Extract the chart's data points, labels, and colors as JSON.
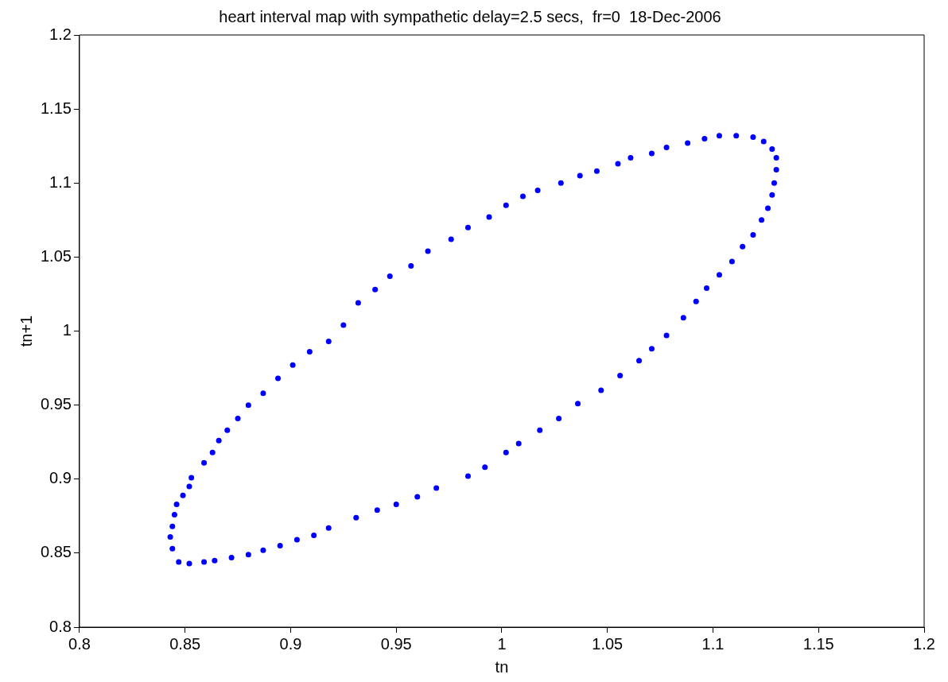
{
  "chart_data": {
    "type": "scatter",
    "title": "heart interval map with sympathetic delay=2.5 secs,  fr=0  18-Dec-2006",
    "xlabel": "tn",
    "ylabel": "tn+1",
    "xlim": [
      0.8,
      1.2
    ],
    "xticks": [
      0.8,
      0.85,
      0.9,
      0.95,
      1,
      1.05,
      1.1,
      1.15,
      1.2
    ],
    "ylim": [
      0.8,
      1.2
    ],
    "yticks": [
      0.8,
      0.85,
      0.9,
      0.95,
      1,
      1.05,
      1.1,
      1.15,
      1.2
    ],
    "grid": false,
    "legend": false,
    "marker": "circle",
    "series": [
      {
        "color": "#0000ff",
        "x": [
          0.847,
          0.852,
          0.859,
          0.864,
          0.872,
          0.88,
          0.887,
          0.895,
          0.903,
          0.911,
          0.918,
          0.931,
          0.941,
          0.95,
          0.96,
          0.969,
          0.984,
          0.992,
          1.002,
          1.008,
          1.018,
          1.027,
          1.036,
          1.047,
          1.056,
          1.065,
          1.071,
          1.078,
          1.086,
          1.092,
          1.097,
          1.103,
          1.109,
          1.114,
          1.119,
          1.123,
          1.126,
          1.128,
          1.129,
          1.13,
          1.13,
          1.128,
          1.124,
          1.119,
          1.111,
          1.103,
          1.096,
          1.088,
          1.078,
          1.071,
          1.061,
          1.055,
          1.045,
          1.037,
          1.028,
          1.017,
          1.01,
          1.002,
          0.994,
          0.984,
          0.976,
          0.965,
          0.957,
          0.947,
          0.94,
          0.932,
          0.925,
          0.918,
          0.909,
          0.901,
          0.894,
          0.887,
          0.88,
          0.875,
          0.87,
          0.866,
          0.863,
          0.859,
          0.853,
          0.852,
          0.849,
          0.846,
          0.845,
          0.844,
          0.843,
          0.844
        ],
        "values": [
          0.844,
          0.843,
          0.844,
          0.845,
          0.847,
          0.849,
          0.852,
          0.855,
          0.859,
          0.862,
          0.867,
          0.874,
          0.879,
          0.883,
          0.888,
          0.894,
          0.902,
          0.908,
          0.918,
          0.924,
          0.933,
          0.941,
          0.951,
          0.96,
          0.97,
          0.98,
          0.988,
          0.997,
          1.009,
          1.02,
          1.029,
          1.038,
          1.047,
          1.057,
          1.065,
          1.075,
          1.083,
          1.092,
          1.1,
          1.109,
          1.117,
          1.123,
          1.128,
          1.131,
          1.132,
          1.132,
          1.13,
          1.127,
          1.124,
          1.12,
          1.117,
          1.113,
          1.108,
          1.105,
          1.1,
          1.095,
          1.091,
          1.085,
          1.077,
          1.07,
          1.062,
          1.054,
          1.044,
          1.037,
          1.028,
          1.019,
          1.004,
          0.993,
          0.986,
          0.977,
          0.968,
          0.958,
          0.95,
          0.941,
          0.933,
          0.926,
          0.918,
          0.911,
          0.901,
          0.895,
          0.889,
          0.883,
          0.876,
          0.868,
          0.861,
          0.853
        ]
      }
    ]
  }
}
